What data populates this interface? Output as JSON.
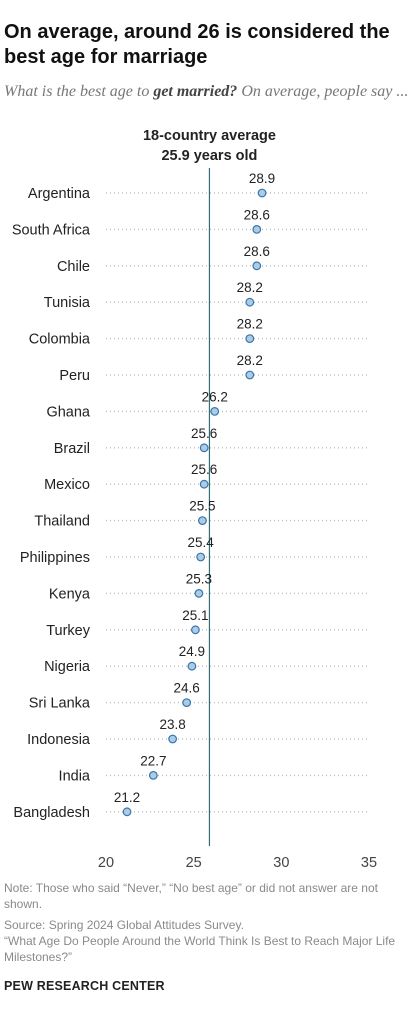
{
  "title": "On average, around 26 is considered the best age for marriage",
  "subtitle": {
    "pre": "What is the best age to ",
    "emph": "get married?",
    "post": " On average, people say ..."
  },
  "chart_data": {
    "type": "scatter",
    "orientation": "horizontal-dot",
    "categories": [
      "Argentina",
      "South Africa",
      "Chile",
      "Tunisia",
      "Colombia",
      "Peru",
      "Ghana",
      "Brazil",
      "Mexico",
      "Thailand",
      "Philippines",
      "Kenya",
      "Turkey",
      "Nigeria",
      "Sri Lanka",
      "Indonesia",
      "India",
      "Bangladesh"
    ],
    "values": [
      28.9,
      28.6,
      28.6,
      28.2,
      28.2,
      28.2,
      26.2,
      25.6,
      25.6,
      25.5,
      25.4,
      25.3,
      25.1,
      24.9,
      24.6,
      23.8,
      22.7,
      21.2
    ],
    "value_labels": [
      "28.9",
      "28.6",
      "28.6",
      "28.2",
      "28.2",
      "28.2",
      "26.2",
      "25.6",
      "25.6",
      "25.5",
      "25.4",
      "25.3",
      "25.1",
      "24.9",
      "24.6",
      "23.8",
      "22.7",
      "21.2"
    ],
    "reference_line": {
      "value": 25.9,
      "label_line1": "18-country average",
      "label_line2": "25.9 years old"
    },
    "xlim": [
      20,
      35
    ],
    "xticks": [
      "20",
      "25",
      "30",
      "35"
    ],
    "grid": false,
    "colors": {
      "marker_fill": "#a9cde8",
      "marker_stroke": "#3b73a6",
      "reference_line": "#2f6f76",
      "guide_dots": "#bdbdbd"
    }
  },
  "footer": {
    "note": "Note: Those who said “Never,” “No best age” or did not answer are not shown.",
    "source": "Source: Spring 2024 Global Attitudes Survey.",
    "report": "“What Age Do People Around the World Think Is Best to Reach Major Life Milestones?”",
    "brand": "PEW RESEARCH CENTER"
  }
}
